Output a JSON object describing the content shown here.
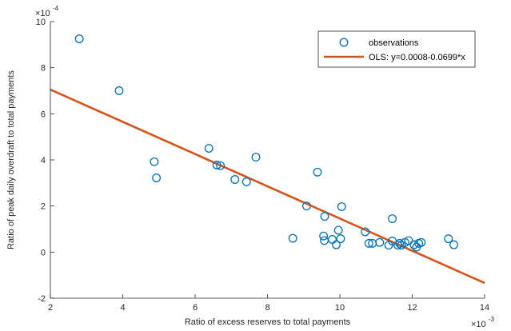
{
  "chart_data": {
    "type": "scatter",
    "xlabel": "Ratio of excess reserves to total payments",
    "ylabel": "Ratio of peak daily overdraft to total payments",
    "x_multiplier": "×10",
    "x_multiplier_exp": "-3",
    "y_multiplier": "×10",
    "y_multiplier_exp": "-4",
    "xlim": [
      2,
      14
    ],
    "ylim": [
      -2,
      10
    ],
    "xticks": [
      2,
      4,
      6,
      8,
      10,
      12,
      14
    ],
    "yticks": [
      -2,
      0,
      2,
      4,
      6,
      8,
      10
    ],
    "grid": false,
    "legend_position": "top-right",
    "colors": {
      "marker": "#0072BD",
      "line": "#D95319",
      "axis": "#262626"
    },
    "series": [
      {
        "name": "observations",
        "kind": "scatter",
        "x": [
          2.8,
          3.9,
          4.87,
          4.93,
          6.38,
          6.6,
          6.7,
          7.1,
          7.42,
          7.68,
          8.7,
          9.08,
          9.38,
          9.57,
          9.55,
          9.58,
          9.79,
          9.9,
          9.96,
          10.02,
          10.05,
          10.7,
          10.8,
          10.9,
          11.1,
          11.35,
          11.45,
          11.45,
          11.6,
          11.65,
          11.7,
          11.8,
          11.9,
          12.05,
          12.12,
          12.18,
          12.25,
          13.0,
          13.15
        ],
        "y": [
          9.25,
          7.0,
          3.92,
          3.22,
          4.5,
          3.78,
          3.75,
          3.15,
          3.05,
          4.12,
          0.6,
          2.0,
          3.47,
          0.5,
          0.7,
          1.55,
          0.55,
          0.32,
          0.95,
          0.58,
          1.97,
          0.88,
          0.38,
          0.38,
          0.42,
          0.3,
          0.48,
          1.45,
          0.3,
          0.38,
          0.3,
          0.42,
          0.5,
          0.32,
          0.22,
          0.38,
          0.42,
          0.58,
          0.32
        ]
      },
      {
        "name": "OLS: y=0.0008-0.0699*x",
        "kind": "line",
        "x": [
          2,
          14
        ],
        "y": [
          7.05,
          -1.34
        ]
      }
    ]
  }
}
